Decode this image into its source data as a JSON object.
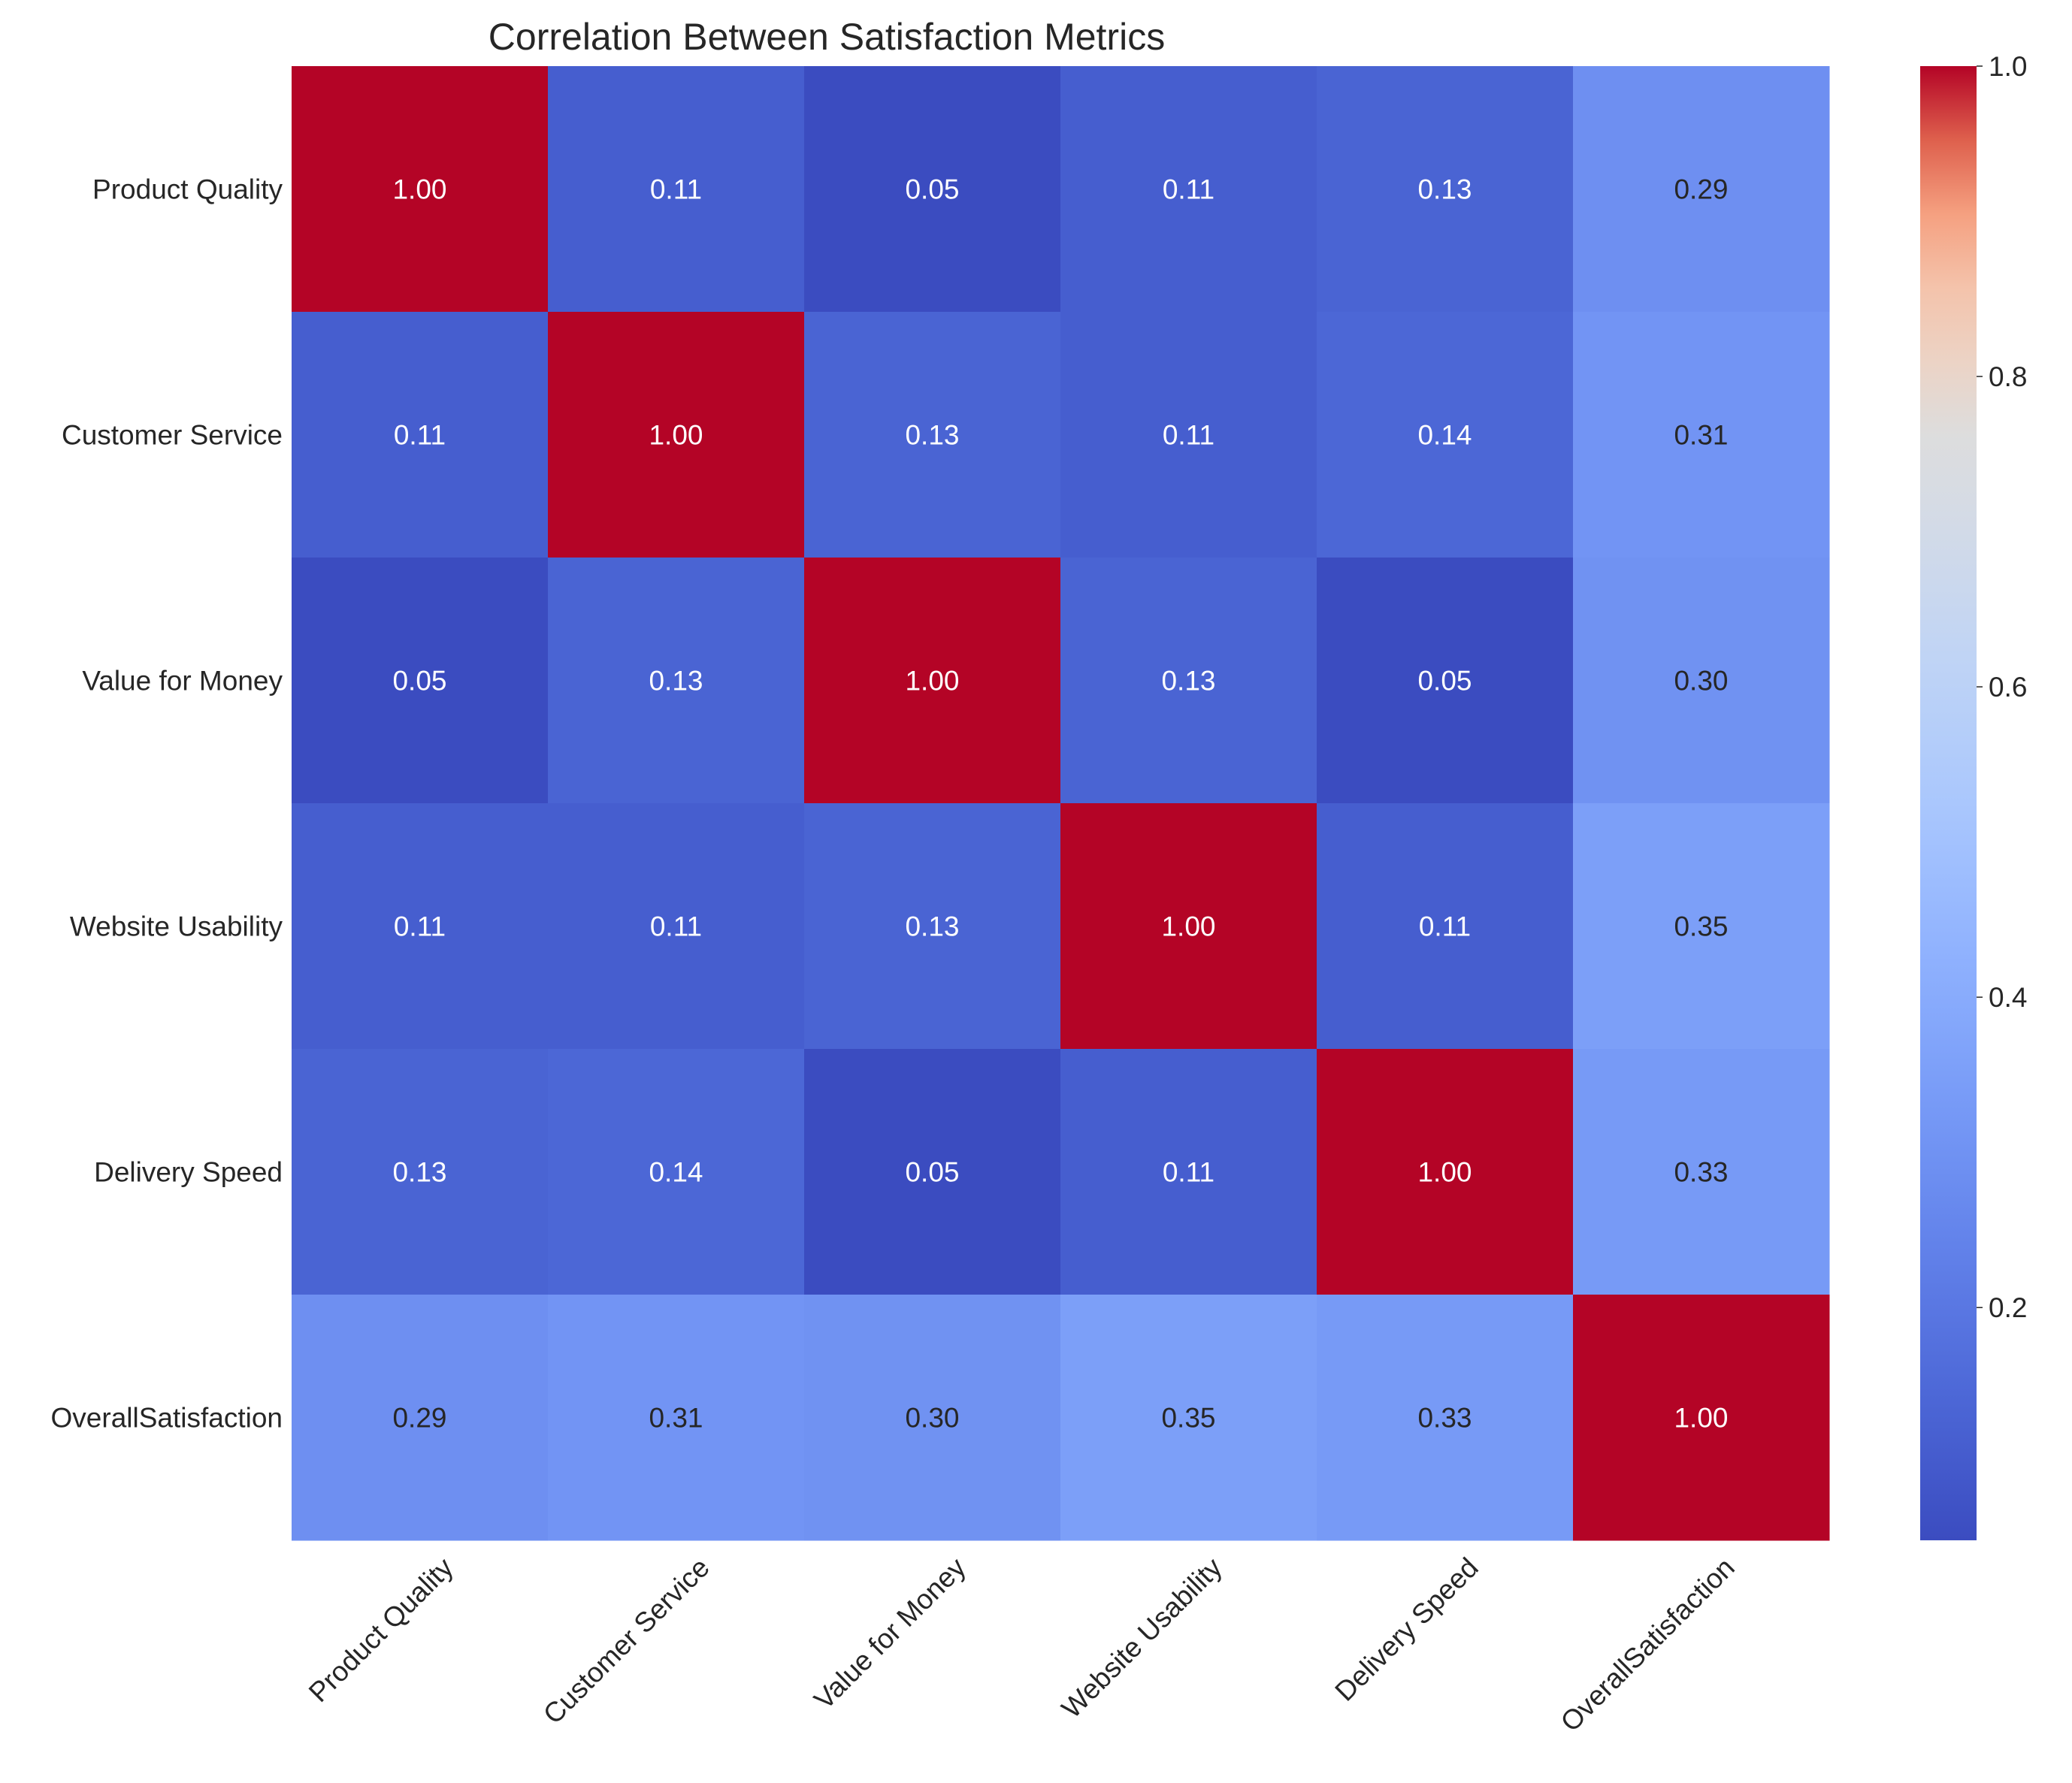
{
  "chart_data": {
    "type": "heatmap",
    "title": "Correlation Between Satisfaction Metrics",
    "xlabel": "",
    "ylabel": "",
    "row_labels": [
      "Product Quality",
      "Customer Service",
      "Value for Money",
      "Website Usability",
      "Delivery Speed",
      "OverallSatisfaction"
    ],
    "col_labels": [
      "Product Quality",
      "Customer Service",
      "Value for Money",
      "Website Usability",
      "Delivery Speed",
      "OverallSatisfaction"
    ],
    "values": [
      [
        1.0,
        0.11,
        0.05,
        0.11,
        0.13,
        0.29
      ],
      [
        0.11,
        1.0,
        0.13,
        0.11,
        0.14,
        0.31
      ],
      [
        0.05,
        0.13,
        1.0,
        0.13,
        0.05,
        0.3
      ],
      [
        0.11,
        0.11,
        0.13,
        1.0,
        0.11,
        0.35
      ],
      [
        0.13,
        0.14,
        0.05,
        0.11,
        1.0,
        0.33
      ],
      [
        0.29,
        0.31,
        0.3,
        0.35,
        0.33,
        1.0
      ]
    ],
    "value_format": "0.00",
    "colormap": "coolwarm",
    "colorbar": {
      "vmin": 0.05,
      "vmax": 1.0,
      "ticks": [
        0.2,
        0.4,
        0.6,
        0.8,
        1.0
      ],
      "tick_labels": [
        "0.2",
        "0.4",
        "0.6",
        "0.8",
        "1.0"
      ]
    },
    "grid": false
  }
}
